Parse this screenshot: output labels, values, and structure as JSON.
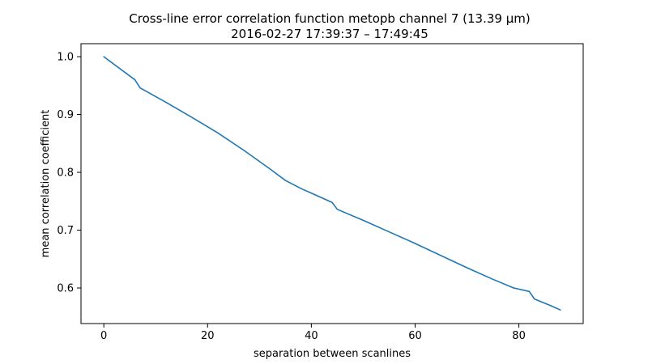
{
  "chart_data": {
    "type": "line",
    "title": "Cross-line error correlation function metopb channel 7 (13.39 µm)",
    "subtitle": "2016-02-27 17:39:37 – 17:49:45",
    "xlabel": "separation between scanlines",
    "ylabel": "mean correlation coefficient",
    "xlim": [
      -4.4,
      92.4
    ],
    "ylim": [
      0.5385,
      1.0225
    ],
    "x_ticks": [
      0,
      20,
      40,
      60,
      80
    ],
    "y_ticks": [
      0.6,
      0.7,
      0.8,
      0.9,
      1.0
    ],
    "x_tick_labels": [
      "0",
      "20",
      "40",
      "60",
      "80"
    ],
    "y_tick_labels": [
      "0.6",
      "0.7",
      "0.8",
      "0.9",
      "1.0"
    ],
    "grid": false,
    "series": [
      {
        "color": "#1f77b4",
        "x": [
          0,
          6,
          7,
          12,
          17,
          22,
          27,
          32,
          35,
          38,
          41,
          44,
          45,
          50,
          55,
          60,
          65,
          70,
          75,
          79,
          82,
          83,
          86,
          88
        ],
        "y": [
          1.0,
          0.96,
          0.946,
          0.921,
          0.895,
          0.868,
          0.838,
          0.806,
          0.786,
          0.772,
          0.76,
          0.748,
          0.736,
          0.717,
          0.697,
          0.677,
          0.656,
          0.635,
          0.615,
          0.6,
          0.594,
          0.581,
          0.57,
          0.562
        ]
      }
    ]
  }
}
